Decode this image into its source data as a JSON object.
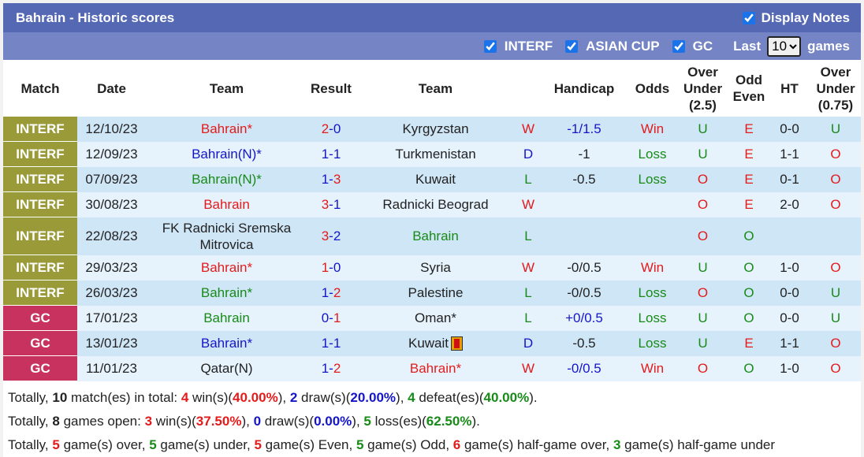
{
  "header": {
    "title": "Bahrain - Historic scores",
    "display_notes": "Display Notes"
  },
  "filters": {
    "items": [
      "INTERF",
      "ASIAN CUP",
      "GC"
    ],
    "last_label": "Last",
    "last_value": "10",
    "games_label": "games"
  },
  "columns": [
    "Match",
    "Date",
    "Team",
    "Result",
    "Team",
    "",
    "Handicap",
    "Odds",
    "Over Under (2.5)",
    "Odd Even",
    "HT",
    "Over Under (0.75)"
  ],
  "colors": {
    "INTERF": "#9a9a38",
    "GC": "#c8325e",
    "win": "#e31b1b",
    "draw": "#1515c8",
    "loss": "#188a18"
  },
  "rows": [
    {
      "comp": "INTERF",
      "date": "12/10/23",
      "home": "Bahrain*",
      "hc": "red",
      "hs": "2",
      "as": "0",
      "hsc": "red",
      "asc": "blue",
      "away": "Kyrgyzstan",
      "ac": "blk",
      "wdl": "W",
      "hcap": "-1/1.5",
      "hcapc": "blue",
      "odds": "Win",
      "ou": "U",
      "oe": "E",
      "ht": "0-0",
      "ou2": "U"
    },
    {
      "comp": "INTERF",
      "date": "12/09/23",
      "home": "Bahrain(N)*",
      "hc": "blue",
      "hs": "1",
      "as": "1",
      "hsc": "blue",
      "asc": "blue",
      "away": "Turkmenistan",
      "ac": "blk",
      "wdl": "D",
      "hcap": "-1",
      "hcapc": "blk",
      "odds": "Loss",
      "ou": "U",
      "oe": "E",
      "ht": "1-1",
      "ou2": "O"
    },
    {
      "comp": "INTERF",
      "date": "07/09/23",
      "home": "Bahrain(N)*",
      "hc": "green",
      "hs": "1",
      "as": "3",
      "hsc": "blue",
      "asc": "red",
      "away": "Kuwait",
      "ac": "blk",
      "wdl": "L",
      "hcap": "-0.5",
      "hcapc": "blk",
      "odds": "Loss",
      "ou": "O",
      "oe": "E",
      "ht": "0-1",
      "ou2": "O"
    },
    {
      "comp": "INTERF",
      "date": "30/08/23",
      "home": "Bahrain",
      "hc": "red",
      "hs": "3",
      "as": "1",
      "hsc": "red",
      "asc": "blue",
      "away": "Radnicki Beograd",
      "ac": "blk",
      "wdl": "W",
      "hcap": "",
      "hcapc": "blk",
      "odds": "",
      "ou": "O",
      "oe": "E",
      "ht": "2-0",
      "ou2": "O"
    },
    {
      "comp": "INTERF",
      "date": "22/08/23",
      "home": "FK Radnicki Sremska Mitrovica",
      "hc": "blk",
      "hs": "3",
      "as": "2",
      "hsc": "red",
      "asc": "blue",
      "away": "Bahrain",
      "ac": "green",
      "wdl": "L",
      "hcap": "",
      "hcapc": "blk",
      "odds": "",
      "ou": "O",
      "oe": "O",
      "ht": "",
      "ou2": ""
    },
    {
      "comp": "INTERF",
      "date": "29/03/23",
      "home": "Bahrain*",
      "hc": "red",
      "hs": "1",
      "as": "0",
      "hsc": "red",
      "asc": "blue",
      "away": "Syria",
      "ac": "blk",
      "wdl": "W",
      "hcap": "-0/0.5",
      "hcapc": "blk",
      "odds": "Win",
      "ou": "U",
      "oe": "O",
      "ht": "1-0",
      "ou2": "O"
    },
    {
      "comp": "INTERF",
      "date": "26/03/23",
      "home": "Bahrain*",
      "hc": "green",
      "hs": "1",
      "as": "2",
      "hsc": "blue",
      "asc": "red",
      "away": "Palestine",
      "ac": "blk",
      "wdl": "L",
      "hcap": "-0/0.5",
      "hcapc": "blk",
      "odds": "Loss",
      "ou": "O",
      "oe": "O",
      "ht": "0-0",
      "ou2": "U"
    },
    {
      "comp": "GC",
      "date": "17/01/23",
      "home": "Bahrain",
      "hc": "green",
      "hs": "0",
      "as": "1",
      "hsc": "blue",
      "asc": "red",
      "away": "Oman*",
      "ac": "blk",
      "wdl": "L",
      "hcap": "+0/0.5",
      "hcapc": "blue",
      "odds": "Loss",
      "ou": "U",
      "oe": "O",
      "ht": "0-0",
      "ou2": "U"
    },
    {
      "comp": "GC",
      "date": "13/01/23",
      "home": "Bahrain*",
      "hc": "blue",
      "hs": "1",
      "as": "1",
      "hsc": "blue",
      "asc": "blue",
      "away": "Kuwait",
      "ac": "blk",
      "card": true,
      "wdl": "D",
      "hcap": "-0.5",
      "hcapc": "blk",
      "odds": "Loss",
      "ou": "U",
      "oe": "E",
      "ht": "1-1",
      "ou2": "O"
    },
    {
      "comp": "GC",
      "date": "11/01/23",
      "home": "Qatar(N)",
      "hc": "blk",
      "hs": "1",
      "as": "2",
      "hsc": "blue",
      "asc": "red",
      "away": "Bahrain*",
      "ac": "red",
      "wdl": "W",
      "hcap": "-0/0.5",
      "hcapc": "blue",
      "odds": "Win",
      "ou": "O",
      "oe": "O",
      "ht": "1-0",
      "ou2": "O"
    }
  ],
  "summary": [
    [
      [
        "Totally, ",
        "blk"
      ],
      [
        "10",
        "blk",
        1
      ],
      [
        " match(es) in total: ",
        "blk"
      ],
      [
        "4",
        "red",
        1
      ],
      [
        " win(s)(",
        "blk"
      ],
      [
        "40.00%",
        "red",
        1
      ],
      [
        "), ",
        "blk"
      ],
      [
        "2",
        "blue",
        1
      ],
      [
        " draw(s)(",
        "blk"
      ],
      [
        "20.00%",
        "blue",
        1
      ],
      [
        "), ",
        "blk"
      ],
      [
        "4",
        "green",
        1
      ],
      [
        " defeat(es)(",
        "blk"
      ],
      [
        "40.00%",
        "green",
        1
      ],
      [
        ").",
        "blk"
      ]
    ],
    [
      [
        "Totally, ",
        "blk"
      ],
      [
        "8",
        "blk",
        1
      ],
      [
        " games open: ",
        "blk"
      ],
      [
        "3",
        "red",
        1
      ],
      [
        " win(s)(",
        "blk"
      ],
      [
        "37.50%",
        "red",
        1
      ],
      [
        "), ",
        "blk"
      ],
      [
        "0",
        "blue",
        1
      ],
      [
        " draw(s)(",
        "blk"
      ],
      [
        "0.00%",
        "blue",
        1
      ],
      [
        "), ",
        "blk"
      ],
      [
        "5",
        "green",
        1
      ],
      [
        " loss(es)(",
        "blk"
      ],
      [
        "62.50%",
        "green",
        1
      ],
      [
        ").",
        "blk"
      ]
    ],
    [
      [
        "Totally, ",
        "blk"
      ],
      [
        "5",
        "red",
        1
      ],
      [
        " game(s) over, ",
        "blk"
      ],
      [
        "5",
        "green",
        1
      ],
      [
        " game(s) under, ",
        "blk"
      ],
      [
        "5",
        "red",
        1
      ],
      [
        " game(s) Even, ",
        "blk"
      ],
      [
        "5",
        "green",
        1
      ],
      [
        " game(s) Odd, ",
        "blk"
      ],
      [
        "6",
        "red",
        1
      ],
      [
        " game(s) half-game over, ",
        "blk"
      ],
      [
        "3",
        "green",
        1
      ],
      [
        " game(s) half-game under",
        "blk"
      ]
    ]
  ]
}
